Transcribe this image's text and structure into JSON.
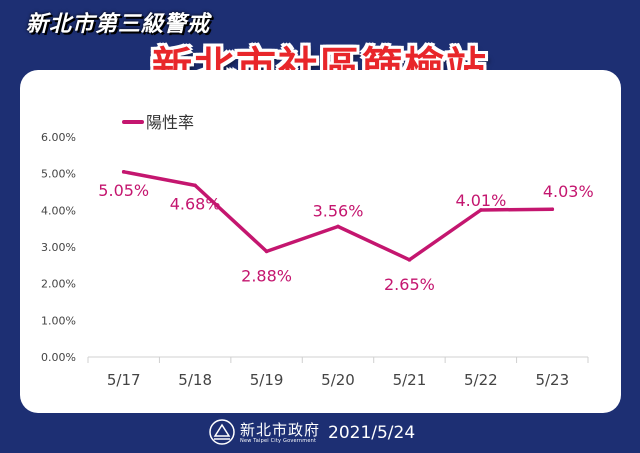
{
  "header": {
    "badge": "新北市第三級警戒",
    "title": "新北市社區篩檢站"
  },
  "footer": {
    "agency_name": "新北市政府",
    "agency_name_en": "New Taipei City Government",
    "date": "2021/5/24"
  },
  "colors": {
    "background": "#1d2f73",
    "series": "#c4166f",
    "title": "#e8262a"
  },
  "chart_data": {
    "type": "line",
    "categories": [
      "5/17",
      "5/18",
      "5/19",
      "5/20",
      "5/21",
      "5/22",
      "5/23"
    ],
    "series": [
      {
        "name": "陽性率",
        "values": [
          5.05,
          4.68,
          2.88,
          3.56,
          2.65,
          4.01,
          4.03
        ],
        "labels": [
          "5.05%",
          "4.68%",
          "2.88%",
          "3.56%",
          "2.65%",
          "4.01%",
          "4.03%"
        ]
      }
    ],
    "y_ticks": [
      "0.00%",
      "1.00%",
      "2.00%",
      "3.00%",
      "4.00%",
      "5.00%",
      "6.00%"
    ],
    "ylim": [
      0,
      6
    ],
    "grid": false,
    "legend": "top-left"
  }
}
